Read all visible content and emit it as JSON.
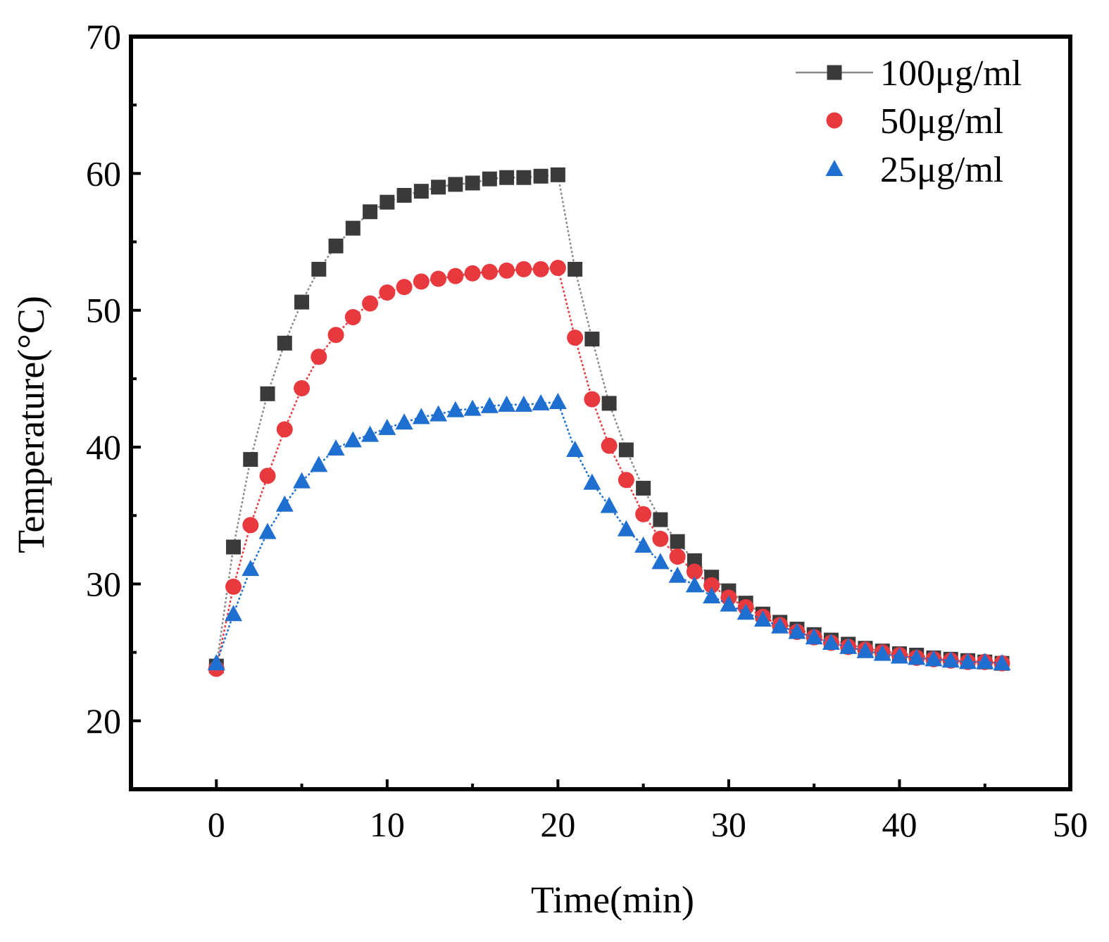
{
  "chart_data": {
    "type": "scatter",
    "title": "",
    "xlabel": "Time(min)",
    "ylabel": "Temperature(°C)",
    "xlim": [
      -5,
      50
    ],
    "ylim": [
      15,
      70
    ],
    "xticks": [
      0,
      10,
      20,
      30,
      40,
      50
    ],
    "yticks": [
      20,
      30,
      40,
      50,
      60,
      70
    ],
    "x_tick_labels": [
      "0",
      "10",
      "20",
      "30",
      "40",
      "50"
    ],
    "y_tick_labels": [
      "20",
      "30",
      "40",
      "50",
      "60",
      "70"
    ],
    "grid": false,
    "legend_position": "top-right",
    "x": [
      0,
      1,
      2,
      3,
      4,
      5,
      6,
      7,
      8,
      9,
      10,
      11,
      12,
      13,
      14,
      15,
      16,
      17,
      18,
      19,
      20,
      21,
      22,
      23,
      24,
      25,
      26,
      27,
      28,
      29,
      30,
      31,
      32,
      33,
      34,
      35,
      36,
      37,
      38,
      39,
      40,
      41,
      42,
      43,
      44,
      45,
      46
    ],
    "series": [
      {
        "name": "100μg/ml",
        "marker": "square",
        "color": "#3a3a3a",
        "line_color": "#8a8a8a",
        "values": [
          24.0,
          32.7,
          39.1,
          43.9,
          47.6,
          50.6,
          53.0,
          54.7,
          56.0,
          57.2,
          57.9,
          58.4,
          58.7,
          59.0,
          59.2,
          59.3,
          59.6,
          59.7,
          59.7,
          59.8,
          59.9,
          53.0,
          47.9,
          43.2,
          39.8,
          37.0,
          34.7,
          33.1,
          31.7,
          30.5,
          29.5,
          28.6,
          27.8,
          27.2,
          26.7,
          26.3,
          25.9,
          25.6,
          25.3,
          25.1,
          24.9,
          24.8,
          24.6,
          24.5,
          24.4,
          24.3,
          24.2
        ]
      },
      {
        "name": "50μg/ml",
        "marker": "circle",
        "color": "#e8393f",
        "line_color": "#e8393f",
        "values": [
          23.8,
          29.8,
          34.3,
          37.9,
          41.3,
          44.3,
          46.6,
          48.2,
          49.5,
          50.5,
          51.3,
          51.7,
          52.1,
          52.3,
          52.5,
          52.7,
          52.8,
          52.9,
          53.0,
          53.0,
          53.1,
          48.0,
          43.5,
          40.1,
          37.6,
          35.1,
          33.3,
          32.0,
          30.9,
          29.9,
          29.0,
          28.3,
          27.6,
          27.0,
          26.5,
          26.1,
          25.7,
          25.4,
          25.2,
          25.0,
          24.8,
          24.6,
          24.5,
          24.4,
          24.3,
          24.3,
          24.2
        ]
      },
      {
        "name": "25μg/ml",
        "marker": "triangle",
        "color": "#1f6fd1",
        "line_color": "#1f6fd1",
        "values": [
          24.2,
          27.8,
          31.1,
          33.8,
          35.8,
          37.5,
          38.7,
          39.9,
          40.5,
          40.9,
          41.4,
          41.8,
          42.2,
          42.4,
          42.7,
          42.8,
          43.0,
          43.1,
          43.1,
          43.2,
          43.3,
          39.8,
          37.4,
          35.7,
          34.0,
          32.8,
          31.6,
          30.6,
          29.9,
          29.1,
          28.5,
          27.9,
          27.4,
          26.9,
          26.5,
          26.1,
          25.7,
          25.4,
          25.1,
          24.9,
          24.7,
          24.6,
          24.5,
          24.4,
          24.3,
          24.3,
          24.2
        ]
      }
    ]
  }
}
